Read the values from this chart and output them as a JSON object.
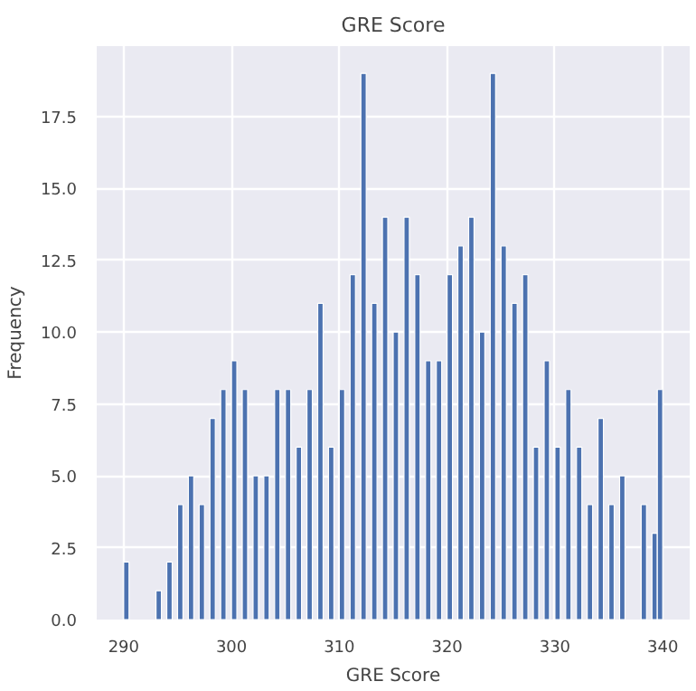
{
  "chart_data": {
    "type": "histogram",
    "title": "GRE Score",
    "xlabel": "GRE Score",
    "ylabel": "Frequency",
    "bins": [
      290,
      290.5,
      291,
      291.5,
      292,
      292.5,
      293,
      293.5,
      294,
      294.5,
      295,
      295.5,
      296,
      296.5,
      297,
      297.5,
      298,
      298.5,
      299,
      299.5,
      300,
      300.5,
      301,
      301.5,
      302,
      302.5,
      303,
      303.5,
      304,
      304.5,
      305,
      305.5,
      306,
      306.5,
      307,
      307.5,
      308,
      308.5,
      309,
      309.5,
      310,
      310.5,
      311,
      311.5,
      312,
      312.5,
      313,
      313.5,
      314,
      314.5,
      315,
      315.5,
      316,
      316.5,
      317,
      317.5,
      318,
      318.5,
      319,
      319.5,
      320,
      320.5,
      321,
      321.5,
      322,
      322.5,
      323,
      323.5,
      324,
      324.5,
      325,
      325.5,
      326,
      326.5,
      327,
      327.5,
      328,
      328.5,
      329,
      329.5,
      330,
      330.5,
      331,
      331.5,
      332,
      332.5,
      333,
      333.5,
      334,
      334.5,
      335,
      335.5,
      336,
      336.5,
      337,
      337.5,
      338,
      338.5,
      339,
      339.5,
      340
    ],
    "values": [
      2,
      0,
      0,
      0,
      0,
      0,
      1,
      0,
      2,
      0,
      4,
      0,
      5,
      0,
      4,
      0,
      7,
      0,
      8,
      0,
      9,
      0,
      8,
      0,
      5,
      0,
      5,
      0,
      8,
      0,
      8,
      0,
      6,
      0,
      8,
      0,
      11,
      0,
      6,
      0,
      8,
      0,
      12,
      0,
      19,
      0,
      11,
      0,
      14,
      0,
      10,
      0,
      14,
      0,
      12,
      0,
      9,
      0,
      9,
      0,
      12,
      0,
      13,
      0,
      14,
      0,
      10,
      0,
      19,
      0,
      13,
      0,
      11,
      0,
      12,
      0,
      6,
      0,
      9,
      0,
      6,
      0,
      8,
      0,
      6,
      0,
      4,
      0,
      7,
      0,
      4,
      0,
      5,
      0,
      0,
      0,
      4,
      0,
      3,
      8
    ],
    "color": "#4c72b0",
    "xlim": [
      287.5,
      342.5
    ],
    "ylim": [
      0,
      19.95
    ],
    "xticks": [
      290,
      300,
      310,
      320,
      330,
      340
    ],
    "yticks": [
      {
        "value": 0,
        "label": "0.0"
      },
      {
        "value": 2.5,
        "label": "2.5"
      },
      {
        "value": 5,
        "label": "5.0"
      },
      {
        "value": 7.5,
        "label": "7.5"
      },
      {
        "value": 10,
        "label": "10.0"
      },
      {
        "value": 12.5,
        "label": "12.5"
      },
      {
        "value": 15,
        "label": "15.0"
      },
      {
        "value": 17.5,
        "label": "17.5"
      }
    ],
    "grid": true
  }
}
